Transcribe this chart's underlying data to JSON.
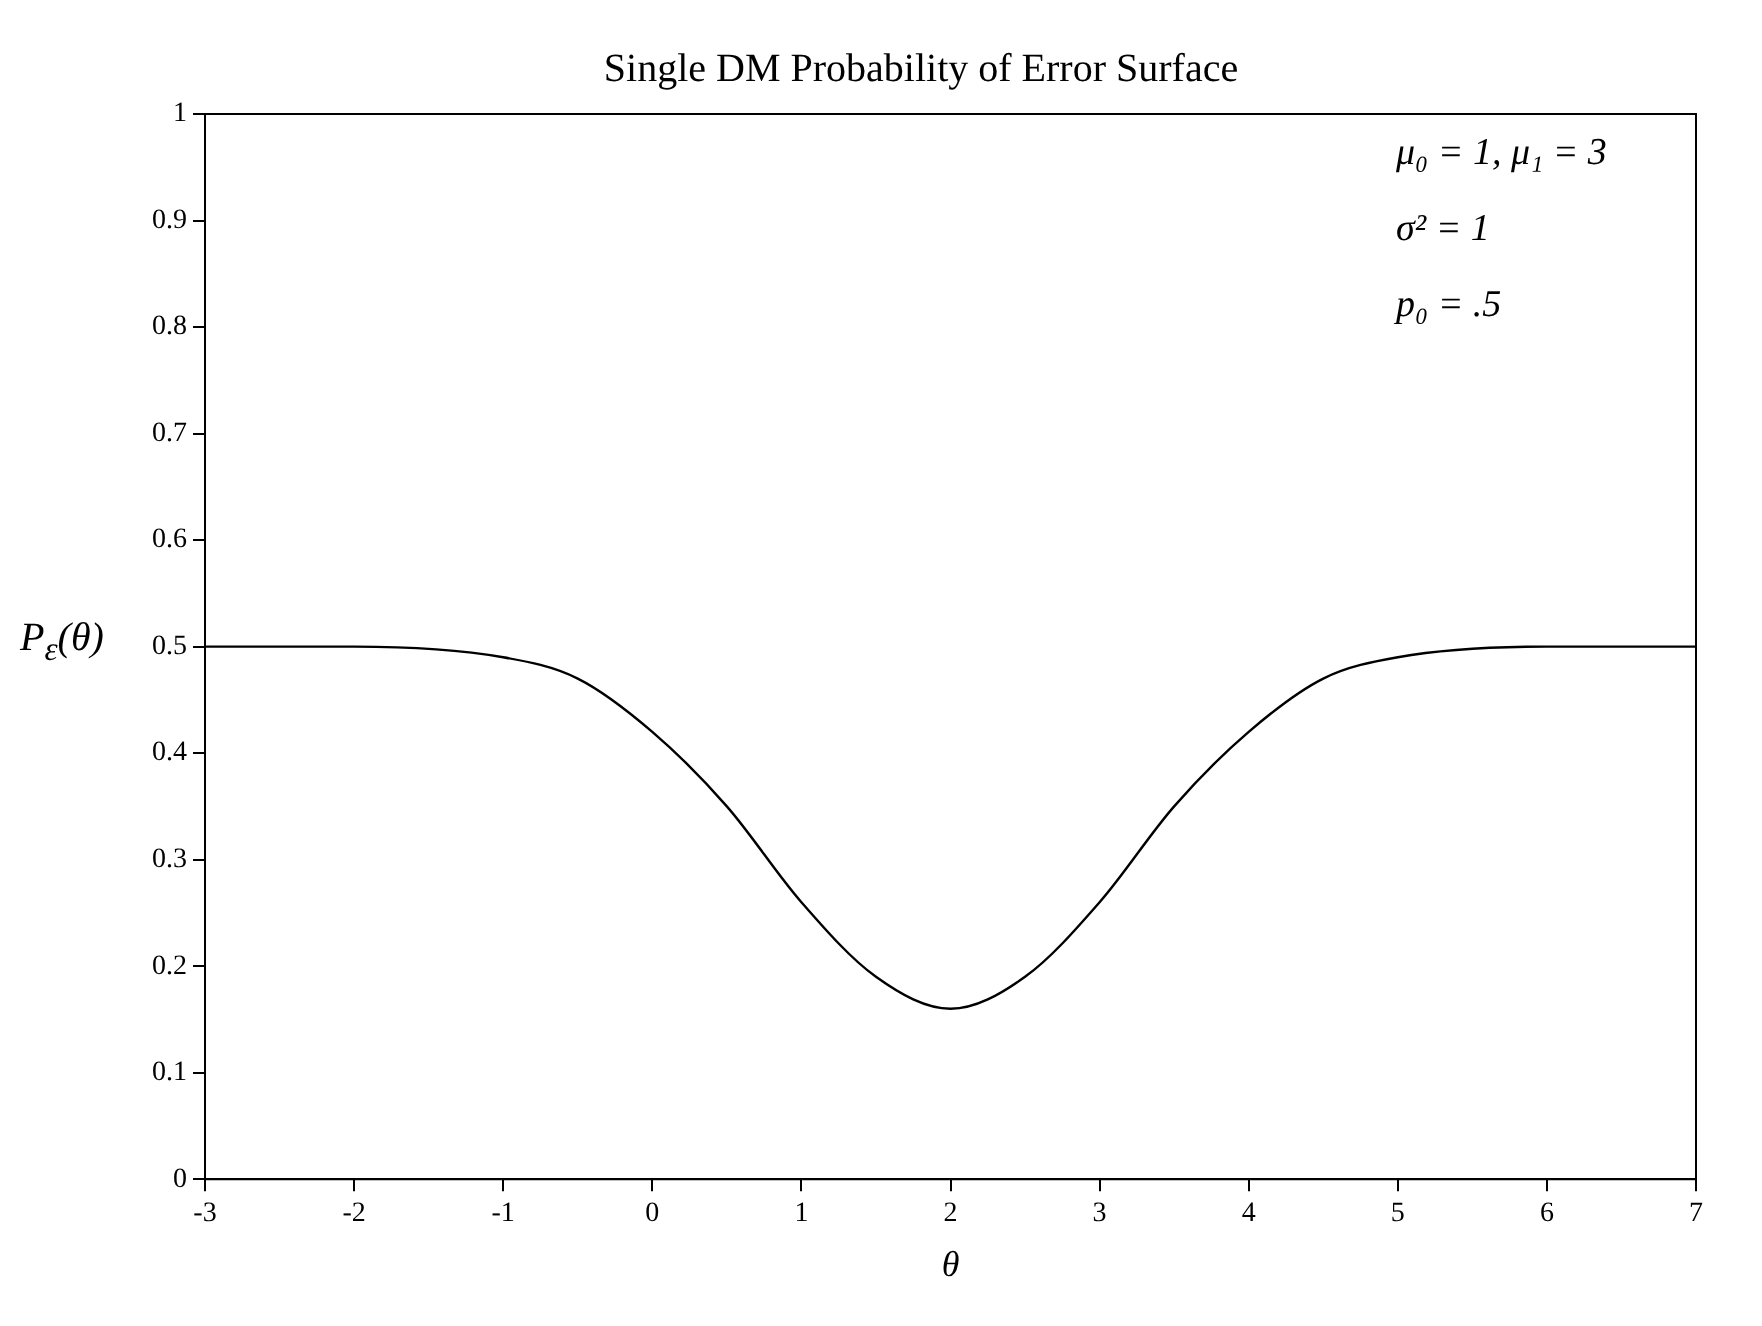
{
  "chart_data": {
    "type": "line",
    "title": "Single DM Probability of Error Surface",
    "xlabel": "θ",
    "ylabel": "P$_{ε}$(θ)",
    "x": [
      -3,
      -2,
      -1,
      -0.5,
      0,
      0.5,
      1,
      1.5,
      2,
      2.5,
      3,
      3.5,
      4,
      4.5,
      5,
      6,
      7
    ],
    "series": [
      {
        "color": "#000000",
        "values": [
          0.5,
          0.5,
          0.49,
          0.47,
          0.42,
          0.35,
          0.26,
          0.19,
          0.16,
          0.19,
          0.26,
          0.35,
          0.42,
          0.47,
          0.49,
          0.5,
          0.5
        ]
      }
    ],
    "xlim": [
      -3,
      7
    ],
    "xticks": [
      -3,
      -2,
      -1,
      0,
      1,
      2,
      3,
      4,
      5,
      6,
      7
    ],
    "ylim": [
      0,
      1
    ],
    "yticks": [
      0,
      0.1,
      0.2,
      0.3,
      0.4,
      0.5,
      0.6,
      0.7,
      0.8,
      0.9,
      1
    ],
    "annotations": [
      "μ₀ = 1,  μ₁ = 3",
      "σ² = 1",
      "p₀ = .5"
    ],
    "grid": false,
    "legend": false,
    "marker": "none",
    "line_style": "solid"
  }
}
